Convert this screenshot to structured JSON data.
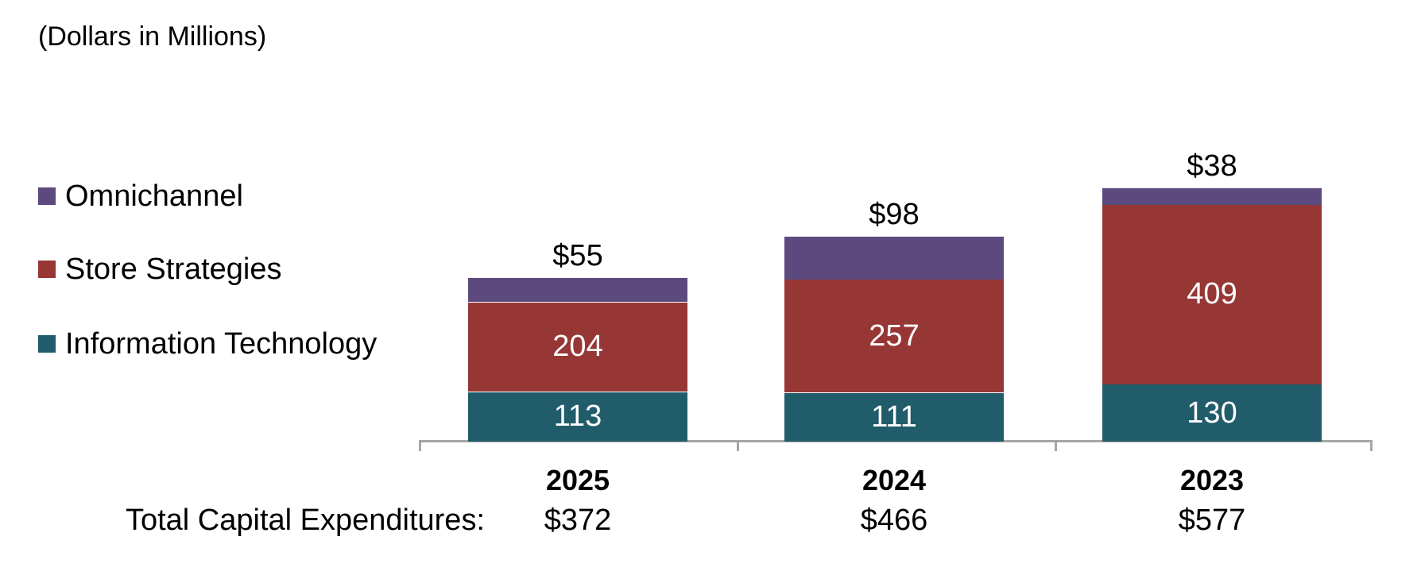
{
  "title": "(Dollars in Millions)",
  "legend": {
    "items": [
      {
        "label": "Omnichannel",
        "color": "#5C4A7E"
      },
      {
        "label": "Store Strategies",
        "color": "#963735"
      },
      {
        "label": "Information Technology",
        "color": "#215C6B"
      }
    ]
  },
  "totals_row": {
    "label": "Total Capital Expenditures:"
  },
  "chart_data": {
    "type": "bar",
    "stacked": true,
    "title": "(Dollars in Millions)",
    "categories": [
      "2025",
      "2024",
      "2023"
    ],
    "series": [
      {
        "name": "Information Technology",
        "color": "#215C6B",
        "values": [
          113,
          111,
          130
        ],
        "labels": [
          "113",
          "111",
          "130"
        ],
        "inside_labels": true,
        "label_color": "#ffffff"
      },
      {
        "name": "Store Strategies",
        "color": "#963735",
        "values": [
          204,
          257,
          409
        ],
        "labels": [
          "204",
          "257",
          "409"
        ],
        "inside_labels": true,
        "label_color": "#ffffff"
      },
      {
        "name": "Omnichannel",
        "color": "#5C4A7E",
        "values": [
          55,
          98,
          38
        ],
        "inside_labels": false,
        "label_color": "#000000"
      }
    ],
    "above_bar_labels": [
      "$55",
      "$98",
      "$38"
    ],
    "totals": [
      "$372",
      "$466",
      "$577"
    ],
    "totals_label": "Total Capital Expenditures:",
    "value_axis_visible": false,
    "grid": false,
    "legend_position": "left",
    "axis_color": "#a6a6a6",
    "text_color": "#000000"
  }
}
